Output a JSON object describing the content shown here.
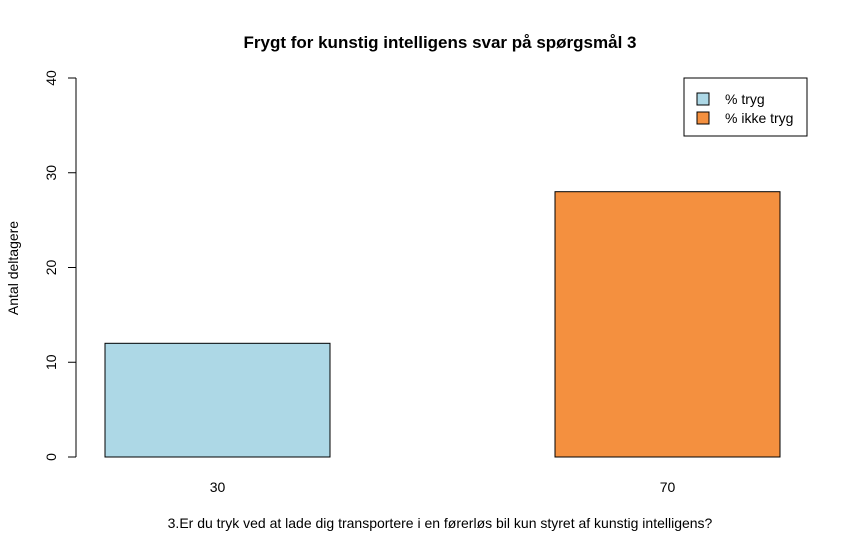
{
  "chart_data": {
    "type": "bar",
    "title": "Frygt for kunstig intelligens svar på spørgsmål 3",
    "xlabel": "3.Er du tryk ved at lade dig transportere i en førerløs bil kun styret af kunstig intelligens?",
    "ylabel": "Antal deltagere",
    "categories": [
      "30",
      "70"
    ],
    "values": [
      12,
      28
    ],
    "colors": [
      "#add8e6",
      "#f4903f"
    ],
    "ylim": [
      0,
      40
    ],
    "yticks": [
      "0",
      "10",
      "20",
      "30",
      "40"
    ],
    "grid": false,
    "legend": {
      "position": "top-right",
      "entries": [
        {
          "label": "% tryg",
          "color": "#add8e6"
        },
        {
          "label": "% ikke tryg",
          "color": "#f4903f"
        }
      ]
    }
  }
}
